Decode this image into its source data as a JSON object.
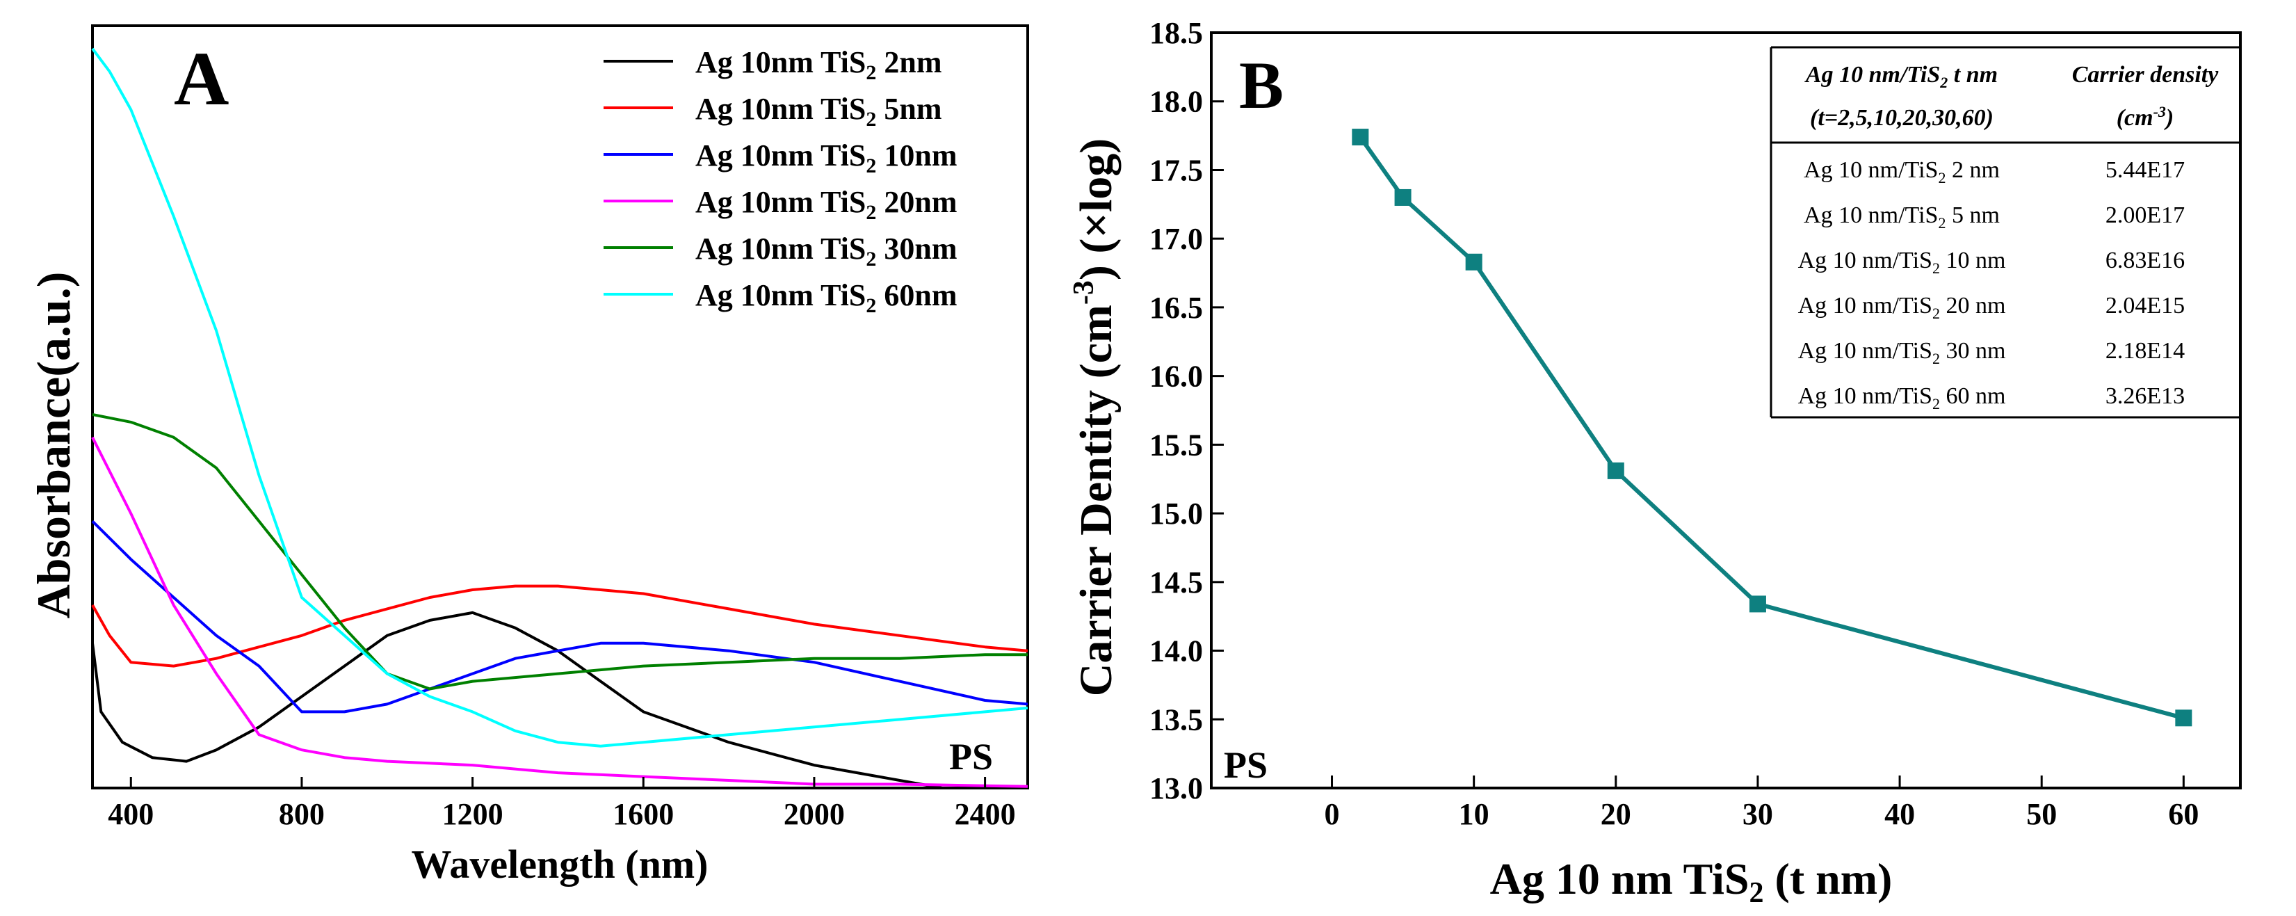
{
  "chart_data": [
    {
      "panel_label": "A",
      "type": "line",
      "title": "",
      "xlabel": "Wavelength (nm)",
      "ylabel": "Absorbance(a.u.)",
      "xlim": [
        310,
        2500
      ],
      "ylim": [
        0,
        1
      ],
      "x_ticks": [
        400,
        800,
        1200,
        1600,
        2000,
        2400
      ],
      "y_ticks_shown": false,
      "annotation": "PS",
      "legend_position": "top-right",
      "series": [
        {
          "name": "Ag 10nm TiS",
          "sub": "2",
          "suffix": " 2nm",
          "color": "#000000",
          "x": [
            310,
            330,
            380,
            450,
            530,
            600,
            700,
            800,
            900,
            1000,
            1100,
            1200,
            1300,
            1400,
            1500,
            1600,
            1800,
            2000,
            2200,
            2300
          ],
          "y": [
            0.19,
            0.1,
            0.06,
            0.04,
            0.035,
            0.05,
            0.08,
            0.12,
            0.16,
            0.2,
            0.22,
            0.23,
            0.21,
            0.18,
            0.14,
            0.1,
            0.06,
            0.03,
            0.01,
            0.0
          ]
        },
        {
          "name": "Ag 10nm TiS",
          "sub": "2",
          "suffix": " 5nm",
          "color": "#ff0000",
          "x": [
            310,
            350,
            400,
            500,
            600,
            700,
            800,
            900,
            1000,
            1100,
            1200,
            1300,
            1400,
            1500,
            1600,
            1800,
            2000,
            2200,
            2400,
            2500
          ],
          "y": [
            0.24,
            0.2,
            0.165,
            0.16,
            0.17,
            0.185,
            0.2,
            0.22,
            0.235,
            0.25,
            0.26,
            0.265,
            0.265,
            0.26,
            0.255,
            0.235,
            0.215,
            0.2,
            0.185,
            0.18
          ]
        },
        {
          "name": "Ag 10nm TiS",
          "sub": "2",
          "suffix": " 10nm",
          "color": "#0000ff",
          "x": [
            310,
            400,
            500,
            600,
            700,
            800,
            900,
            1000,
            1100,
            1200,
            1300,
            1400,
            1500,
            1600,
            1800,
            2000,
            2200,
            2400,
            2500
          ],
          "y": [
            0.35,
            0.3,
            0.25,
            0.2,
            0.16,
            0.1,
            0.1,
            0.11,
            0.13,
            0.15,
            0.17,
            0.18,
            0.19,
            0.19,
            0.18,
            0.165,
            0.14,
            0.115,
            0.11
          ]
        },
        {
          "name": "Ag 10nm TiS",
          "sub": "2",
          "suffix": " 20nm",
          "color": "#ff00ff",
          "x": [
            310,
            400,
            500,
            600,
            700,
            800,
            900,
            1000,
            1200,
            1400,
            1600,
            1800,
            2000,
            2200,
            2400,
            2500
          ],
          "y": [
            0.46,
            0.36,
            0.24,
            0.15,
            0.07,
            0.05,
            0.04,
            0.035,
            0.03,
            0.02,
            0.015,
            0.01,
            0.005,
            0.005,
            0.003,
            0.002
          ]
        },
        {
          "name": "Ag 10nm TiS",
          "sub": "2",
          "suffix": " 30nm",
          "color": "#008000",
          "x": [
            310,
            400,
            500,
            600,
            700,
            800,
            900,
            1000,
            1100,
            1200,
            1400,
            1600,
            1800,
            2000,
            2200,
            2400,
            2500
          ],
          "y": [
            0.49,
            0.48,
            0.46,
            0.42,
            0.35,
            0.28,
            0.21,
            0.15,
            0.13,
            0.14,
            0.15,
            0.16,
            0.165,
            0.17,
            0.17,
            0.175,
            0.175
          ]
        },
        {
          "name": "Ag 10nm TiS",
          "sub": "2",
          "suffix": " 60nm",
          "color": "#00ffff",
          "x": [
            310,
            350,
            400,
            450,
            500,
            600,
            700,
            800,
            900,
            1000,
            1100,
            1200,
            1300,
            1400,
            1500,
            1600,
            1800,
            2000,
            2200,
            2400,
            2500
          ],
          "y": [
            0.97,
            0.94,
            0.89,
            0.82,
            0.75,
            0.6,
            0.41,
            0.25,
            0.2,
            0.15,
            0.12,
            0.1,
            0.075,
            0.06,
            0.055,
            0.06,
            0.07,
            0.08,
            0.09,
            0.1,
            0.105
          ]
        }
      ]
    },
    {
      "panel_label": "B",
      "type": "line",
      "title": "",
      "xlabel_main": "Ag 10 nm TiS",
      "xlabel_sub": "2",
      "xlabel_tail": " (t nm)",
      "ylabel_main": "Carrier Dentity (cm",
      "ylabel_sup": "-3",
      "ylabel_tail": ")  (×log)",
      "annotation": "PS",
      "color": "#0e8080",
      "xlim": [
        -8.5,
        64
      ],
      "ylim": [
        13.0,
        18.5
      ],
      "x_ticks": [
        0,
        10,
        20,
        30,
        40,
        50,
        60
      ],
      "y_ticks": [
        13.0,
        13.5,
        14.0,
        14.5,
        15.0,
        15.5,
        16.0,
        16.5,
        17.0,
        17.5,
        18.0,
        18.5
      ],
      "x": [
        2,
        5,
        10,
        20,
        30,
        60
      ],
      "y": [
        17.74,
        17.3,
        16.83,
        15.31,
        14.34,
        13.51
      ],
      "table": {
        "header1_line1_a": "Ag 10 nm/TiS",
        "header1_line1_sub": "2",
        "header1_line1_b": " t nm",
        "header1_line2": "(t=2,5,10,20,30,60)",
        "header2_line1": "Carrier density",
        "header2_line2_a": "(cm",
        "header2_line2_sup": "-3",
        "header2_line2_b": ")",
        "rows": [
          {
            "a": "Ag 10 nm/TiS",
            "sub": "2",
            "b": " 2 nm",
            "value": "5.44E17"
          },
          {
            "a": "Ag 10 nm/TiS",
            "sub": "2",
            "b": " 5 nm",
            "value": "2.00E17"
          },
          {
            "a": "Ag 10 nm/TiS",
            "sub": "2",
            "b": " 10 nm",
            "value": "6.83E16"
          },
          {
            "a": "Ag 10 nm/TiS",
            "sub": "2",
            "b": " 20 nm",
            "value": "2.04E15"
          },
          {
            "a": "Ag 10 nm/TiS",
            "sub": "2",
            "b": " 30 nm",
            "value": "2.18E14"
          },
          {
            "a": "Ag 10 nm/TiS",
            "sub": "2",
            "b": " 60 nm",
            "value": "3.26E13"
          }
        ]
      }
    }
  ]
}
